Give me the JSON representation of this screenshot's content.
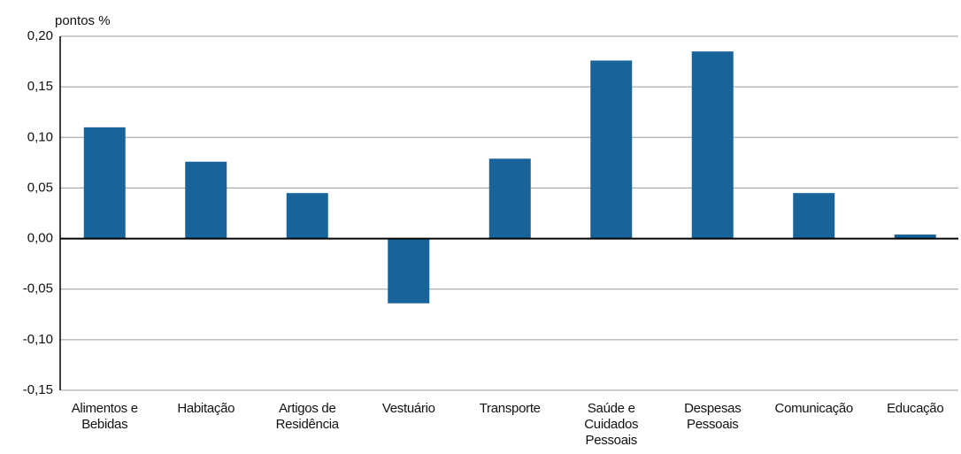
{
  "chart_data": {
    "type": "bar",
    "y_label": "pontos %",
    "categories": [
      "Alimentos e Bebidas",
      "Habitação",
      "Artigos de Residência",
      "Vestuário",
      "Transporte",
      "Saúde e Cuidados Pessoais",
      "Despesas Pessoais",
      "Comunicação",
      "Educação"
    ],
    "values": [
      0.11,
      0.076,
      0.045,
      -0.064,
      0.079,
      0.176,
      0.185,
      0.045,
      0.004
    ],
    "color": "#18649a",
    "ylim": [
      -0.15,
      0.2
    ],
    "yticks": [
      {
        "value": -0.15,
        "label": "-0,15"
      },
      {
        "value": -0.1,
        "label": "-0,10"
      },
      {
        "value": -0.05,
        "label": "-0,05"
      },
      {
        "value": 0,
        "label": "0,00"
      },
      {
        "value": 0.05,
        "label": "0,05"
      },
      {
        "value": 0.1,
        "label": "0,10"
      },
      {
        "value": 0.15,
        "label": "0,15"
      },
      {
        "value": 0.2,
        "label": "0,20"
      }
    ],
    "grid": true
  }
}
